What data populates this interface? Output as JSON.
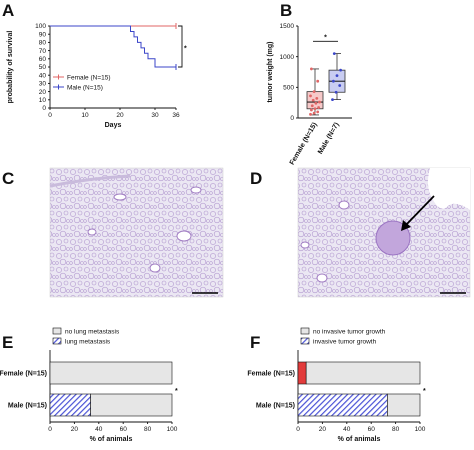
{
  "panels": {
    "A": "A",
    "B": "B",
    "C": "C",
    "D": "D",
    "E": "E",
    "F": "F"
  },
  "colors": {
    "female": "#e06666",
    "male": "#3b46c9",
    "box_female": "#f6c9c9",
    "box_male": "#c9cdf2",
    "bar_empty": "#e6e6e6",
    "hatch": "#4a52d6",
    "red_bar": "#e23b3b",
    "tissue_bg": "#e9e6f2",
    "tissue_stroke": "#a98cc7"
  },
  "chart_data": [
    {
      "type": "line",
      "panel": "A",
      "xlabel": "Days",
      "ylabel": "probability of survival",
      "xlim": [
        0,
        36
      ],
      "ylim": [
        0,
        100
      ],
      "xticks": [
        "0",
        "10",
        "20",
        "30",
        "36"
      ],
      "yticks": [
        "0",
        "10",
        "20",
        "30",
        "40",
        "50",
        "60",
        "70",
        "80",
        "90",
        "100"
      ],
      "series": [
        {
          "name": "Female (N=15)",
          "x": [
            0,
            36
          ],
          "y": [
            100,
            100
          ]
        },
        {
          "name": "Male (N=15)",
          "x": [
            0,
            23,
            23,
            24,
            24,
            25,
            25,
            26,
            26,
            27,
            27,
            28,
            28,
            30,
            30,
            36
          ],
          "y": [
            100,
            100,
            93.3,
            93.3,
            86.7,
            86.7,
            80,
            80,
            73.3,
            73.3,
            66.7,
            66.7,
            60,
            60,
            50,
            50
          ]
        }
      ],
      "significance": "*",
      "legend_placement": "bottom-left"
    },
    {
      "type": "box",
      "panel": "B",
      "ylabel": "tumor weight (mg)",
      "ylim": [
        0,
        1500
      ],
      "yticks": [
        "0",
        "500",
        "1000",
        "1500"
      ],
      "categories": [
        "Female (N=15)",
        "Male (N=7)"
      ],
      "boxes": [
        {
          "min": 50,
          "q1": 150,
          "median": 260,
          "q3": 430,
          "max": 800,
          "points": [
            60,
            80,
            100,
            130,
            150,
            170,
            200,
            240,
            260,
            290,
            320,
            360,
            430,
            600,
            800
          ]
        },
        {
          "min": 300,
          "q1": 420,
          "median": 600,
          "q3": 780,
          "max": 1050,
          "points": [
            300,
            420,
            530,
            600,
            690,
            780,
            1050
          ]
        }
      ],
      "significance": "*"
    },
    {
      "type": "bar",
      "panel": "E",
      "orientation": "horizontal",
      "stacked": true,
      "xlabel": "% of animals",
      "xlim": [
        0,
        100
      ],
      "xticks": [
        "0",
        "20",
        "40",
        "60",
        "80",
        "100"
      ],
      "categories": [
        "Female (N=15)",
        "Male (N=15)"
      ],
      "series": [
        {
          "name": "lung metastasis",
          "values": [
            0,
            33.3
          ]
        },
        {
          "name": "no lung metastasis",
          "values": [
            100,
            66.7
          ]
        }
      ],
      "significance": "*",
      "legend_placement": "top"
    },
    {
      "type": "bar",
      "panel": "F",
      "orientation": "horizontal",
      "stacked": true,
      "xlabel": "% of animals",
      "xlim": [
        0,
        100
      ],
      "xticks": [
        "0",
        "20",
        "40",
        "60",
        "80",
        "100"
      ],
      "categories": [
        "Female (N=15)",
        "Male (N=15)"
      ],
      "series": [
        {
          "name": "invasive tumor growth",
          "values": [
            6.7,
            73.3
          ]
        },
        {
          "name": "no invasive tumor growth",
          "values": [
            93.3,
            26.7
          ]
        }
      ],
      "significance": "*",
      "legend_placement": "top"
    }
  ],
  "micrographs": {
    "C": {
      "scale_bar": true
    },
    "D": {
      "scale_bar": true,
      "arrow": true
    }
  },
  "legendE": [
    "no lung metastasis",
    "lung metastasis"
  ],
  "legendF": [
    "no invasive tumor growth",
    "invasive tumor growth"
  ],
  "rowLabelsE": [
    "Female (N=15)",
    "Male (N=15)"
  ],
  "rowLabelsF": [
    "Female (N=15)",
    "Male (N=15)"
  ]
}
